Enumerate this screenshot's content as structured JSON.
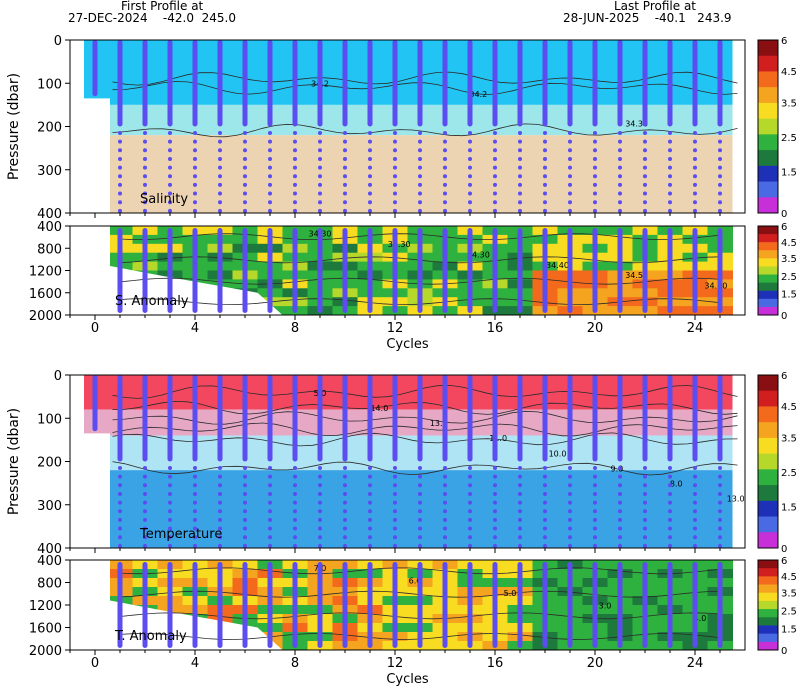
{
  "header": {
    "first_label": "First Profile at",
    "first_info": "27-DEC-2024    -42.0  245.0",
    "last_label": "Last Profile at",
    "last_info": "28-JUN-2025    -40.1   243.9"
  },
  "chart_data": [
    {
      "type": "heatmap",
      "name": "salinity",
      "label": "Salinity",
      "ylabel": "Pressure (dbar)",
      "ylim": [
        400,
        0
      ],
      "yticks": [
        0,
        100,
        200,
        300,
        400
      ],
      "xlim": [
        -1,
        26
      ],
      "contour_labels": [
        "34.2",
        "34.2",
        "34.30"
      ],
      "profile_cycles": [
        0,
        1,
        2,
        3,
        4,
        5,
        6,
        7,
        8,
        9,
        10,
        11,
        12,
        13,
        14,
        15,
        16,
        17,
        18,
        19,
        20,
        21,
        22,
        23,
        24
      ],
      "bands": [
        {
          "from": 0,
          "to": 150,
          "color": "#21c4f2"
        },
        {
          "from": 150,
          "to": 220,
          "color": "#9de7ea"
        },
        {
          "from": 220,
          "to": 400,
          "color": "#ecd3b1"
        }
      ]
    },
    {
      "type": "heatmap",
      "name": "salinity_anomaly",
      "label": "S. Anomaly",
      "ylim": [
        2000,
        400
      ],
      "yticks": [
        400,
        800,
        1200,
        1600,
        2000
      ],
      "xlabel": "Cycles",
      "xticks": [
        0,
        4,
        8,
        12,
        16,
        20,
        24
      ],
      "contour_labels": [
        "34.30",
        "34.30",
        "34.30",
        "34.40",
        "34.50",
        "34.60"
      ]
    },
    {
      "type": "heatmap",
      "name": "temperature",
      "label": "Temperature",
      "ylabel": "Pressure (dbar)",
      "ylim": [
        400,
        0
      ],
      "yticks": [
        0,
        100,
        200,
        300,
        400
      ],
      "contour_labels": [
        "5.0",
        "14.0",
        "13.0",
        "11.0",
        "10.0",
        "9.0",
        "8.0",
        "13.0"
      ],
      "bands": [
        {
          "from": 0,
          "to": 80,
          "color": "#f2475f"
        },
        {
          "from": 80,
          "to": 140,
          "color": "#e6a8c5"
        },
        {
          "from": 140,
          "to": 220,
          "color": "#aee4f4"
        },
        {
          "from": 220,
          "to": 400,
          "color": "#3aa3e6"
        }
      ]
    },
    {
      "type": "heatmap",
      "name": "temperature_anomaly",
      "label": "T. Anomaly",
      "ylim": [
        2000,
        400
      ],
      "yticks": [
        400,
        800,
        1200,
        1600,
        2000
      ],
      "xlabel": "Cycles",
      "xticks": [
        0,
        4,
        8,
        12,
        16,
        20,
        24
      ],
      "contour_labels": [
        "7.0",
        "6.0",
        "5.0",
        "3.0",
        "4.0"
      ]
    }
  ],
  "colorbar": {
    "labels": [
      "6",
      "4.5",
      "3.5",
      "2.5",
      "1.5",
      "0"
    ],
    "colors": [
      "#8a0f12",
      "#d11f1f",
      "#f36a1c",
      "#f5a420",
      "#f7dc22",
      "#b6d82a",
      "#2eb13f",
      "#1d7a3c",
      "#1e2fb8",
      "#4a6ae3",
      "#c72fd8"
    ]
  }
}
